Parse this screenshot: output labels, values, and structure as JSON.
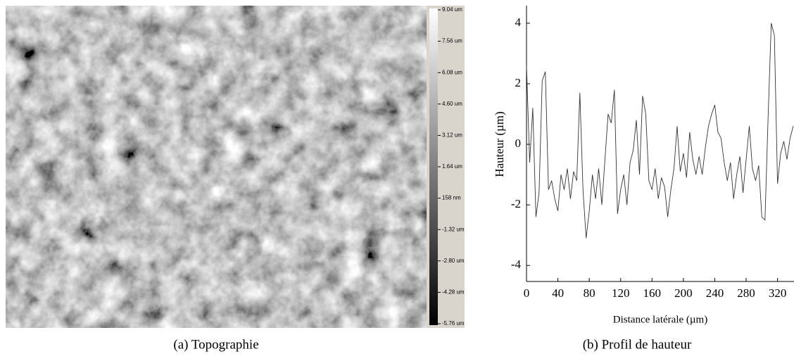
{
  "panel_a": {
    "caption": "(a) Topographie",
    "colorbar": {
      "labels": [
        "9.04 um",
        "7.56 um",
        "6.08 um",
        "4.60 um",
        "3.12 um",
        "1.64 um",
        "158 nm",
        "-1.32 um",
        "-2.80 um",
        "-4.28 um",
        "-5.76 um"
      ]
    }
  },
  "panel_b": {
    "caption": "(b) Profil de hauteur"
  },
  "chart_data": {
    "type": "line",
    "x_label": "Distance latérale (µm)",
    "y_label": "Hauteur (µm)",
    "x": [
      0,
      4,
      8,
      12,
      16,
      20,
      24,
      28,
      32,
      36,
      40,
      44,
      48,
      52,
      56,
      60,
      64,
      68,
      72,
      76,
      80,
      84,
      88,
      92,
      96,
      100,
      104,
      108,
      112,
      116,
      120,
      124,
      128,
      132,
      136,
      140,
      144,
      148,
      152,
      156,
      160,
      164,
      168,
      172,
      176,
      180,
      184,
      188,
      192,
      196,
      200,
      204,
      208,
      212,
      216,
      220,
      224,
      228,
      232,
      236,
      240,
      244,
      248,
      252,
      256,
      260,
      264,
      268,
      272,
      276,
      280,
      284,
      288,
      292,
      296,
      300,
      304,
      308,
      312,
      316,
      320,
      324,
      328,
      332,
      336,
      340
    ],
    "series": [
      {
        "color": "#333333",
        "values": [
          2.6,
          -0.6,
          1.2,
          -2.4,
          -1.6,
          2.1,
          2.4,
          -1.5,
          -1.2,
          -1.8,
          -2.2,
          -1.0,
          -1.5,
          -0.8,
          -1.8,
          -0.9,
          -1.2,
          1.7,
          -1.5,
          -3.1,
          -2.2,
          -1.0,
          -1.8,
          -0.8,
          -2.0,
          -0.5,
          1.0,
          0.7,
          1.8,
          -2.3,
          -1.5,
          -1.0,
          -2.0,
          -0.6,
          -0.2,
          0.8,
          -1.0,
          1.6,
          1.0,
          -1.2,
          -1.5,
          -0.8,
          -1.8,
          -1.1,
          -1.4,
          -2.4,
          -1.5,
          -0.8,
          0.6,
          -0.9,
          -0.3,
          -1.1,
          0.4,
          -0.5,
          -1.0,
          -0.4,
          -1.0,
          -0.1,
          0.6,
          1.0,
          1.3,
          0.4,
          0.2,
          -0.6,
          -1.2,
          -0.6,
          -1.8,
          -1.0,
          -0.4,
          -1.6,
          -0.5,
          0.6,
          -0.8,
          -1.2,
          -0.7,
          -2.4,
          -2.5,
          0.9,
          4.0,
          3.6,
          -1.3,
          -0.3,
          0.1,
          -0.5,
          0.2,
          0.6
        ]
      }
    ],
    "xlim": [
      0,
      341
    ],
    "ylim": [
      -4.53,
      4.58
    ],
    "xticks": [
      0,
      40,
      80,
      120,
      160,
      200,
      240,
      280,
      320
    ],
    "yticks": [
      -4,
      -2,
      0,
      2,
      4
    ]
  }
}
